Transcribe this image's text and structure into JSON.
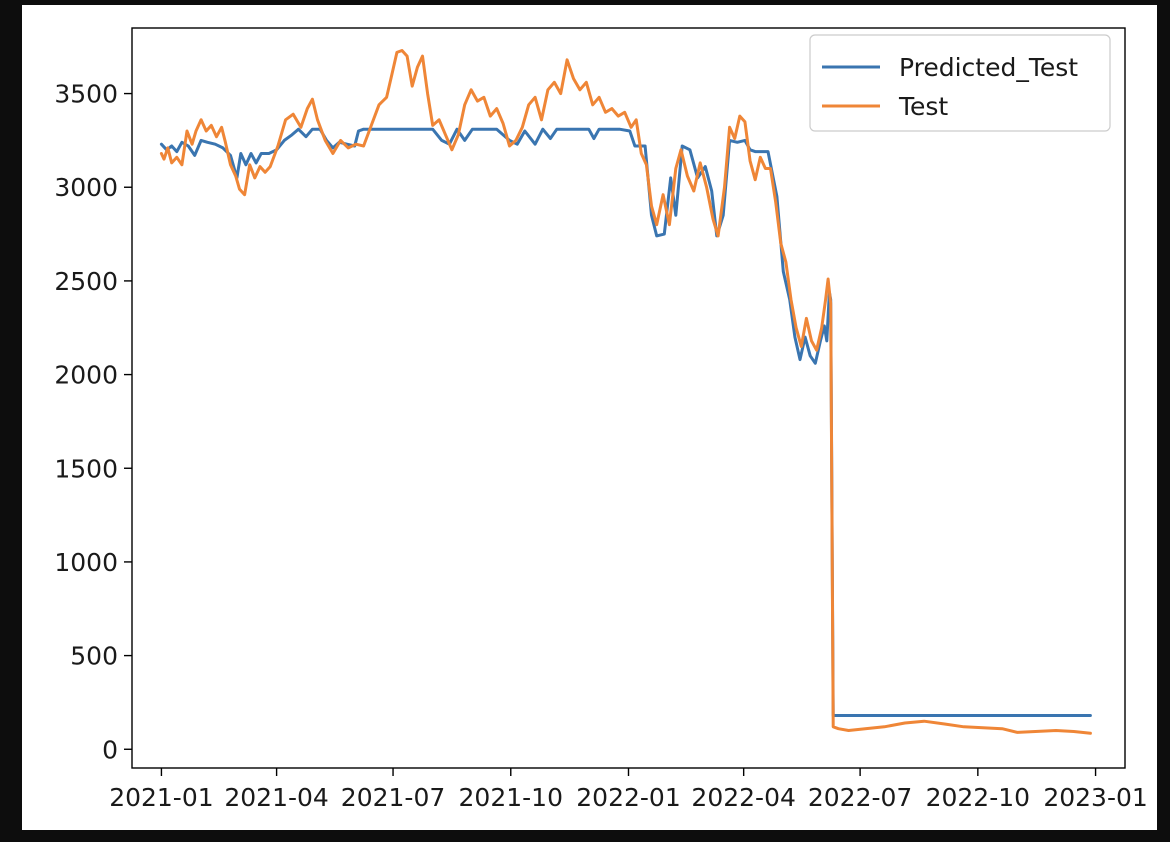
{
  "chart_data": {
    "type": "line",
    "title": "",
    "xlabel": "",
    "ylabel": "",
    "x_ticks": [
      "2021-01",
      "2021-04",
      "2021-07",
      "2021-10",
      "2022-01",
      "2022-04",
      "2022-07",
      "2022-10",
      "2023-01"
    ],
    "y_ticks": [
      "0",
      "500",
      "1000",
      "1500",
      "2000",
      "2500",
      "3000",
      "3500"
    ],
    "xlim": [
      "2020-12-09",
      "2023-01-24"
    ],
    "ylim": [
      -100,
      3850
    ],
    "grid": false,
    "legend_position": "top-right",
    "series": [
      {
        "name": "Predicted_Test",
        "color": "#3a75b0",
        "points": [
          [
            "2021-01-01",
            3230
          ],
          [
            "2021-01-05",
            3200
          ],
          [
            "2021-01-09",
            3220
          ],
          [
            "2021-01-13",
            3190
          ],
          [
            "2021-01-17",
            3240
          ],
          [
            "2021-01-22",
            3220
          ],
          [
            "2021-01-27",
            3170
          ],
          [
            "2021-02-01",
            3250
          ],
          [
            "2021-02-06",
            3240
          ],
          [
            "2021-02-12",
            3230
          ],
          [
            "2021-02-18",
            3210
          ],
          [
            "2021-02-24",
            3170
          ],
          [
            "2021-03-01",
            3050
          ],
          [
            "2021-03-04",
            3180
          ],
          [
            "2021-03-08",
            3120
          ],
          [
            "2021-03-12",
            3180
          ],
          [
            "2021-03-16",
            3130
          ],
          [
            "2021-03-20",
            3180
          ],
          [
            "2021-03-26",
            3180
          ],
          [
            "2021-04-01",
            3200
          ],
          [
            "2021-04-07",
            3250
          ],
          [
            "2021-04-13",
            3280
          ],
          [
            "2021-04-18",
            3310
          ],
          [
            "2021-04-24",
            3270
          ],
          [
            "2021-04-29",
            3310
          ],
          [
            "2021-05-05",
            3310
          ],
          [
            "2021-05-10",
            3250
          ],
          [
            "2021-05-15",
            3210
          ],
          [
            "2021-05-20",
            3240
          ],
          [
            "2021-05-26",
            3230
          ],
          [
            "2021-06-01",
            3220
          ],
          [
            "2021-06-04",
            3300
          ],
          [
            "2021-06-08",
            3310
          ],
          [
            "2021-06-20",
            3310
          ],
          [
            "2021-07-10",
            3310
          ],
          [
            "2021-08-01",
            3310
          ],
          [
            "2021-08-08",
            3250
          ],
          [
            "2021-08-14",
            3230
          ],
          [
            "2021-08-20",
            3310
          ],
          [
            "2021-08-26",
            3250
          ],
          [
            "2021-09-01",
            3310
          ],
          [
            "2021-09-20",
            3310
          ],
          [
            "2021-09-30",
            3250
          ],
          [
            "2021-10-06",
            3230
          ],
          [
            "2021-10-12",
            3300
          ],
          [
            "2021-10-20",
            3230
          ],
          [
            "2021-10-26",
            3310
          ],
          [
            "2021-11-01",
            3260
          ],
          [
            "2021-11-06",
            3310
          ],
          [
            "2021-12-01",
            3310
          ],
          [
            "2021-12-05",
            3260
          ],
          [
            "2021-12-09",
            3310
          ],
          [
            "2021-12-25",
            3310
          ],
          [
            "2022-01-02",
            3300
          ],
          [
            "2022-01-06",
            3220
          ],
          [
            "2022-01-14",
            3220
          ],
          [
            "2022-01-19",
            2850
          ],
          [
            "2022-01-23",
            2740
          ],
          [
            "2022-01-29",
            2750
          ],
          [
            "2022-02-03",
            3050
          ],
          [
            "2022-02-07",
            2850
          ],
          [
            "2022-02-12",
            3220
          ],
          [
            "2022-02-18",
            3200
          ],
          [
            "2022-02-24",
            3050
          ],
          [
            "2022-03-02",
            3110
          ],
          [
            "2022-03-07",
            2980
          ],
          [
            "2022-03-11",
            2740
          ],
          [
            "2022-03-16",
            2850
          ],
          [
            "2022-03-21",
            3250
          ],
          [
            "2022-03-27",
            3240
          ],
          [
            "2022-04-02",
            3250
          ],
          [
            "2022-04-06",
            3200
          ],
          [
            "2022-04-10",
            3190
          ],
          [
            "2022-04-20",
            3190
          ],
          [
            "2022-04-27",
            2950
          ],
          [
            "2022-05-02",
            2550
          ],
          [
            "2022-05-07",
            2400
          ],
          [
            "2022-05-11",
            2200
          ],
          [
            "2022-05-15",
            2080
          ],
          [
            "2022-05-19",
            2200
          ],
          [
            "2022-05-23",
            2100
          ],
          [
            "2022-05-27",
            2060
          ],
          [
            "2022-05-31",
            2180
          ],
          [
            "2022-06-03",
            2260
          ],
          [
            "2022-06-05",
            2180
          ],
          [
            "2022-06-07",
            2440
          ],
          [
            "2022-06-08",
            2400
          ],
          [
            "2022-06-10",
            180
          ],
          [
            "2022-08-01",
            180
          ],
          [
            "2022-10-01",
            180
          ],
          [
            "2022-12-28",
            180
          ]
        ]
      },
      {
        "name": "Test",
        "color": "#ef8637",
        "points": [
          [
            "2021-01-01",
            3180
          ],
          [
            "2021-01-03",
            3150
          ],
          [
            "2021-01-06",
            3210
          ],
          [
            "2021-01-09",
            3130
          ],
          [
            "2021-01-13",
            3160
          ],
          [
            "2021-01-17",
            3120
          ],
          [
            "2021-01-21",
            3300
          ],
          [
            "2021-01-25",
            3230
          ],
          [
            "2021-01-28",
            3300
          ],
          [
            "2021-02-01",
            3360
          ],
          [
            "2021-02-05",
            3300
          ],
          [
            "2021-02-09",
            3330
          ],
          [
            "2021-02-13",
            3270
          ],
          [
            "2021-02-17",
            3320
          ],
          [
            "2021-02-20",
            3240
          ],
          [
            "2021-02-24",
            3120
          ],
          [
            "2021-02-28",
            3060
          ],
          [
            "2021-03-03",
            2990
          ],
          [
            "2021-03-07",
            2960
          ],
          [
            "2021-03-11",
            3120
          ],
          [
            "2021-03-15",
            3050
          ],
          [
            "2021-03-19",
            3110
          ],
          [
            "2021-03-23",
            3080
          ],
          [
            "2021-03-27",
            3110
          ],
          [
            "2021-04-02",
            3220
          ],
          [
            "2021-04-08",
            3360
          ],
          [
            "2021-04-14",
            3390
          ],
          [
            "2021-04-20",
            3320
          ],
          [
            "2021-04-25",
            3420
          ],
          [
            "2021-04-29",
            3470
          ],
          [
            "2021-05-03",
            3360
          ],
          [
            "2021-05-09",
            3250
          ],
          [
            "2021-05-15",
            3180
          ],
          [
            "2021-05-21",
            3250
          ],
          [
            "2021-05-27",
            3210
          ],
          [
            "2021-06-02",
            3230
          ],
          [
            "2021-06-08",
            3220
          ],
          [
            "2021-06-14",
            3330
          ],
          [
            "2021-06-20",
            3440
          ],
          [
            "2021-06-26",
            3480
          ],
          [
            "2021-06-30",
            3600
          ],
          [
            "2021-07-04",
            3720
          ],
          [
            "2021-07-08",
            3730
          ],
          [
            "2021-07-12",
            3700
          ],
          [
            "2021-07-16",
            3540
          ],
          [
            "2021-07-20",
            3640
          ],
          [
            "2021-07-24",
            3700
          ],
          [
            "2021-07-28",
            3500
          ],
          [
            "2021-08-01",
            3330
          ],
          [
            "2021-08-06",
            3360
          ],
          [
            "2021-08-11",
            3280
          ],
          [
            "2021-08-16",
            3200
          ],
          [
            "2021-08-21",
            3280
          ],
          [
            "2021-08-26",
            3440
          ],
          [
            "2021-08-31",
            3520
          ],
          [
            "2021-09-05",
            3460
          ],
          [
            "2021-09-10",
            3480
          ],
          [
            "2021-09-15",
            3380
          ],
          [
            "2021-09-20",
            3420
          ],
          [
            "2021-09-25",
            3340
          ],
          [
            "2021-09-30",
            3220
          ],
          [
            "2021-10-05",
            3250
          ],
          [
            "2021-10-10",
            3320
          ],
          [
            "2021-10-15",
            3440
          ],
          [
            "2021-10-20",
            3480
          ],
          [
            "2021-10-25",
            3360
          ],
          [
            "2021-10-30",
            3520
          ],
          [
            "2021-11-04",
            3560
          ],
          [
            "2021-11-09",
            3500
          ],
          [
            "2021-11-14",
            3680
          ],
          [
            "2021-11-19",
            3580
          ],
          [
            "2021-11-24",
            3520
          ],
          [
            "2021-11-29",
            3560
          ],
          [
            "2021-12-04",
            3440
          ],
          [
            "2021-12-09",
            3480
          ],
          [
            "2021-12-14",
            3400
          ],
          [
            "2021-12-19",
            3420
          ],
          [
            "2021-12-24",
            3380
          ],
          [
            "2021-12-29",
            3400
          ],
          [
            "2022-01-03",
            3320
          ],
          [
            "2022-01-07",
            3360
          ],
          [
            "2022-01-11",
            3180
          ],
          [
            "2022-01-15",
            3120
          ],
          [
            "2022-01-19",
            2900
          ],
          [
            "2022-01-23",
            2800
          ],
          [
            "2022-01-28",
            2960
          ],
          [
            "2022-02-02",
            2800
          ],
          [
            "2022-02-07",
            3100
          ],
          [
            "2022-02-11",
            3200
          ],
          [
            "2022-02-16",
            3060
          ],
          [
            "2022-02-21",
            2980
          ],
          [
            "2022-02-26",
            3130
          ],
          [
            "2022-03-03",
            3000
          ],
          [
            "2022-03-08",
            2830
          ],
          [
            "2022-03-12",
            2740
          ],
          [
            "2022-03-17",
            3000
          ],
          [
            "2022-03-21",
            3320
          ],
          [
            "2022-03-25",
            3260
          ],
          [
            "2022-03-29",
            3380
          ],
          [
            "2022-04-02",
            3350
          ],
          [
            "2022-04-06",
            3140
          ],
          [
            "2022-04-10",
            3040
          ],
          [
            "2022-04-14",
            3160
          ],
          [
            "2022-04-18",
            3100
          ],
          [
            "2022-04-22",
            3100
          ],
          [
            "2022-04-26",
            2920
          ],
          [
            "2022-04-30",
            2700
          ],
          [
            "2022-05-04",
            2600
          ],
          [
            "2022-05-08",
            2400
          ],
          [
            "2022-05-12",
            2250
          ],
          [
            "2022-05-16",
            2150
          ],
          [
            "2022-05-20",
            2300
          ],
          [
            "2022-05-24",
            2180
          ],
          [
            "2022-05-28",
            2130
          ],
          [
            "2022-06-01",
            2250
          ],
          [
            "2022-06-04",
            2400
          ],
          [
            "2022-06-06",
            2510
          ],
          [
            "2022-06-08",
            2380
          ],
          [
            "2022-06-10",
            120
          ],
          [
            "2022-06-14",
            110
          ],
          [
            "2022-06-22",
            100
          ],
          [
            "2022-07-05",
            110
          ],
          [
            "2022-07-20",
            120
          ],
          [
            "2022-08-05",
            140
          ],
          [
            "2022-08-20",
            150
          ],
          [
            "2022-09-05",
            135
          ],
          [
            "2022-09-20",
            120
          ],
          [
            "2022-10-05",
            115
          ],
          [
            "2022-10-20",
            110
          ],
          [
            "2022-11-01",
            90
          ],
          [
            "2022-11-15",
            95
          ],
          [
            "2022-12-01",
            100
          ],
          [
            "2022-12-15",
            95
          ],
          [
            "2022-12-28",
            85
          ]
        ]
      }
    ]
  }
}
